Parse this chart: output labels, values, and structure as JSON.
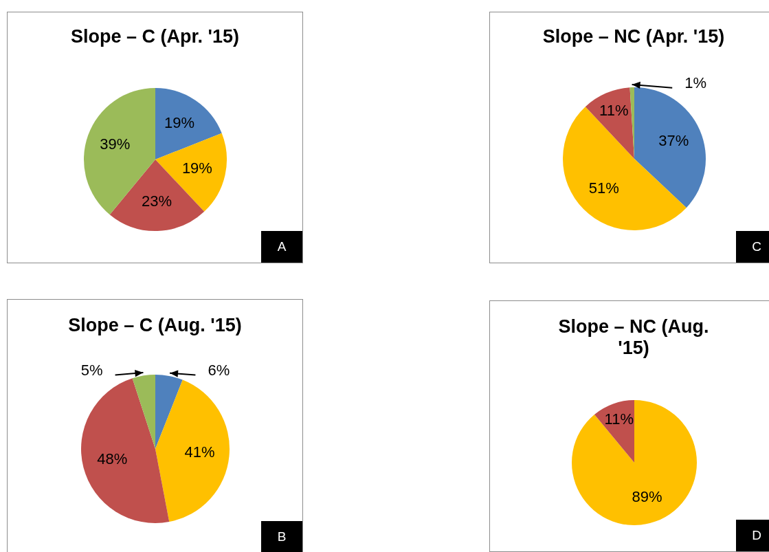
{
  "chart_data": [
    {
      "type": "pie",
      "title": "Slope – C (Apr. '15)",
      "categories": [
        null,
        null,
        null,
        null
      ],
      "values": [
        19,
        19,
        23,
        39
      ],
      "colors": [
        "#4f81bd",
        "#ffc000",
        "#c0504d",
        "#9bbb59"
      ],
      "value_labels": [
        "19%",
        "19%",
        "23%",
        "39%"
      ],
      "annotations": [
        "A"
      ]
    },
    {
      "type": "pie",
      "title": "Slope – NC (Apr. '15)",
      "categories": [
        null,
        null,
        null,
        null
      ],
      "values": [
        37,
        51,
        11,
        1
      ],
      "colors": [
        "#4f81bd",
        "#ffc000",
        "#c0504d",
        "#9bbb59"
      ],
      "value_labels": [
        "37%",
        "51%",
        "11%",
        "1%"
      ],
      "annotations": [
        "C"
      ]
    },
    {
      "type": "pie",
      "title": "Slope – C (Aug. '15)",
      "categories": [
        null,
        null,
        null,
        null
      ],
      "values": [
        6,
        41,
        48,
        5
      ],
      "colors": [
        "#4f81bd",
        "#ffc000",
        "#c0504d",
        "#9bbb59"
      ],
      "value_labels": [
        "6%",
        "41%",
        "48%",
        "5%"
      ],
      "annotations": [
        "B"
      ]
    },
    {
      "type": "pie",
      "title": "Slope – NC (Aug. '15)",
      "categories": [
        null,
        null
      ],
      "values": [
        89,
        11
      ],
      "colors": [
        "#ffc000",
        "#c0504d"
      ],
      "value_labels": [
        "89%",
        "11%"
      ],
      "annotations": [
        "D"
      ]
    }
  ]
}
